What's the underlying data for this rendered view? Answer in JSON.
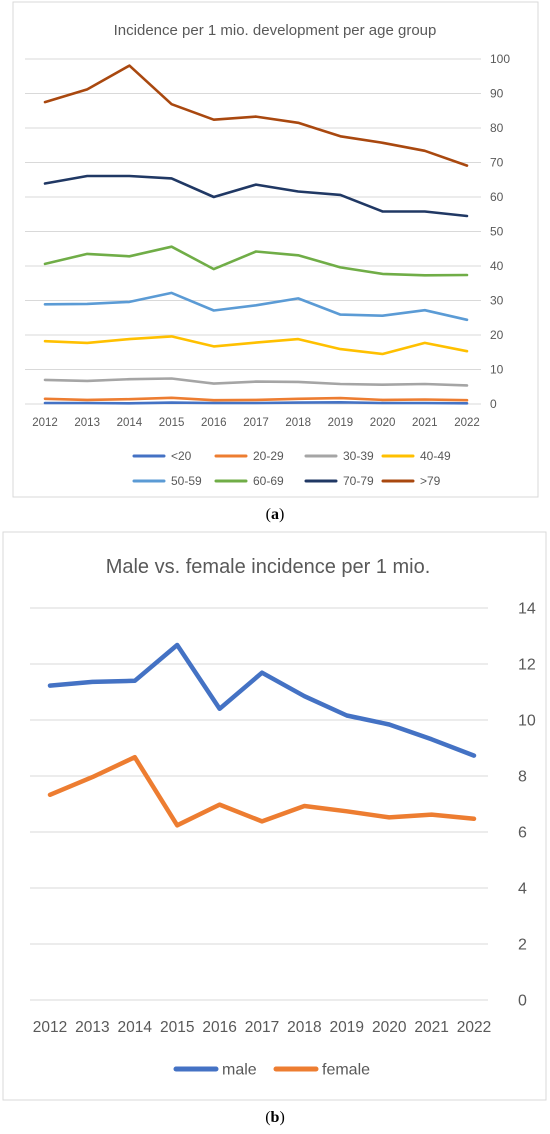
{
  "chart_data": [
    {
      "type": "line",
      "title": "Incidence per 1 mio. development per age group",
      "caption_open": "(",
      "caption_letter": "a",
      "caption_close": ")",
      "x": [
        "2012",
        "2013",
        "2014",
        "2015",
        "2016",
        "2017",
        "2018",
        "2019",
        "2020",
        "2021",
        "2022"
      ],
      "ylim": [
        0,
        100
      ],
      "yticks": [
        "0",
        "10",
        "20",
        "30",
        "40",
        "50",
        "60",
        "70",
        "80",
        "90",
        "100"
      ],
      "grid": true,
      "legend_position": "bottom",
      "series": [
        {
          "name": "<20",
          "color": "#4472C4",
          "values": [
            0.3,
            0.3,
            0.2,
            0.4,
            0.3,
            0.3,
            0.4,
            0.5,
            0.3,
            0.3,
            0.2
          ]
        },
        {
          "name": "20-29",
          "color": "#ED7D31",
          "values": [
            1.5,
            1.2,
            1.4,
            1.8,
            1.1,
            1.2,
            1.5,
            1.7,
            1.2,
            1.3,
            1.1
          ]
        },
        {
          "name": "30-39",
          "color": "#A5A5A5",
          "values": [
            7.0,
            6.7,
            7.2,
            7.4,
            5.9,
            6.5,
            6.4,
            5.8,
            5.6,
            5.8,
            5.4
          ]
        },
        {
          "name": "40-49",
          "color": "#FFC000",
          "values": [
            18.2,
            17.7,
            18.8,
            19.6,
            16.7,
            17.8,
            18.8,
            15.9,
            14.5,
            17.7,
            15.3
          ]
        },
        {
          "name": "50-59",
          "color": "#5B9BD5",
          "values": [
            28.9,
            29.0,
            29.6,
            32.2,
            27.1,
            28.6,
            30.6,
            25.9,
            25.6,
            27.2,
            24.4
          ]
        },
        {
          "name": "60-69",
          "color": "#70AD47",
          "values": [
            40.6,
            43.5,
            42.8,
            45.6,
            39.1,
            44.2,
            43.1,
            39.6,
            37.7,
            37.3,
            37.4
          ]
        },
        {
          "name": "70-79",
          "color": "#203864",
          "values": [
            63.9,
            66.1,
            66.1,
            65.4,
            60.0,
            63.6,
            61.6,
            60.6,
            55.8,
            55.8,
            54.5
          ]
        },
        {
          "name": ">79",
          "color": "#A9480F",
          "values": [
            87.5,
            91.2,
            98.1,
            86.9,
            82.4,
            83.3,
            81.5,
            77.6,
            75.7,
            73.4,
            69.1
          ]
        }
      ]
    },
    {
      "type": "line",
      "title": "Male vs. female incidence per 1 mio.",
      "caption_open": "(",
      "caption_letter": "b",
      "caption_close": ")",
      "x": [
        "2012",
        "2013",
        "2014",
        "2015",
        "2016",
        "2017",
        "2018",
        "2019",
        "2020",
        "2021",
        "2022"
      ],
      "ylim": [
        0,
        14
      ],
      "yticks": [
        "0",
        "2",
        "4",
        "6",
        "8",
        "10",
        "12",
        "14"
      ],
      "grid": true,
      "legend_position": "bottom",
      "series": [
        {
          "name": "male",
          "color": "#4472C4",
          "values": [
            11.23,
            11.36,
            11.4,
            12.68,
            10.4,
            11.69,
            10.85,
            10.16,
            9.84,
            9.31,
            8.73
          ]
        },
        {
          "name": "female",
          "color": "#ED7D31",
          "values": [
            7.33,
            7.96,
            8.67,
            6.24,
            6.98,
            6.38,
            6.93,
            6.74,
            6.52,
            6.62,
            6.47
          ]
        }
      ]
    }
  ]
}
